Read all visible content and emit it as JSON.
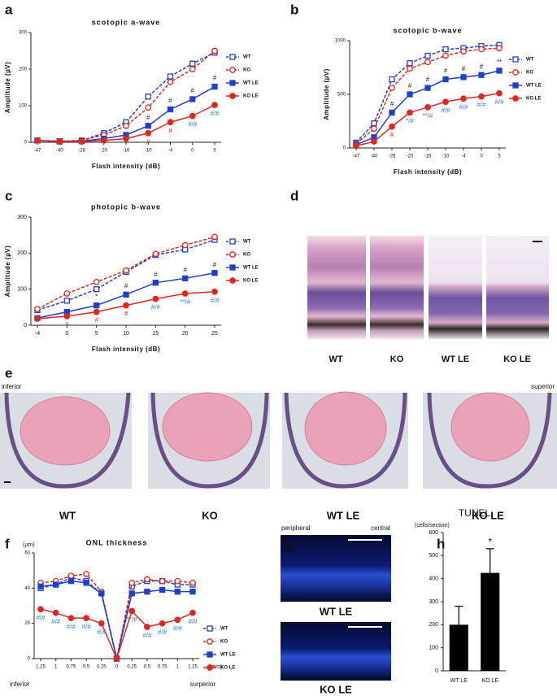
{
  "panel_labels": [
    "a",
    "b",
    "c",
    "d",
    "e",
    "f",
    "g",
    "h"
  ],
  "histology_d": {
    "labels": [
      "WT",
      "KO",
      "WT LE",
      "KO LE"
    ]
  },
  "histology_e": {
    "labels": [
      "WT",
      "KO",
      "WT LE",
      "KO LE"
    ],
    "left": "inferior",
    "right": "superior"
  },
  "histology_g": {
    "left": "peripheral",
    "right": "central",
    "labels": [
      "WT LE",
      "KO LE"
    ]
  },
  "chart_data": [
    {
      "type": "line",
      "title": "scotopic a-wave",
      "x_label": "Flash intensity (dB)",
      "y_label": "Amplitude (µV)",
      "categories": [
        "-47",
        "-40",
        "-28",
        "-20",
        "-16",
        "-10",
        "-4",
        "0",
        "5"
      ],
      "ylim": [
        0,
        300
      ],
      "yticks": [
        0,
        100,
        200,
        300
      ],
      "legend": "right",
      "series": [
        {
          "name": "WT",
          "color": "#1f3fd0",
          "marker": "square",
          "filled": false,
          "dashed": true,
          "values": [
            5,
            3,
            5,
            25,
            55,
            125,
            180,
            215,
            245
          ]
        },
        {
          "name": "KO",
          "color": "#e2261b",
          "marker": "circle",
          "filled": false,
          "dashed": true,
          "values": [
            5,
            3,
            5,
            20,
            45,
            95,
            165,
            200,
            250
          ]
        },
        {
          "name": "WT LE",
          "color": "#1f3fd0",
          "marker": "square",
          "filled": true,
          "dashed": false,
          "values": [
            5,
            2,
            3,
            10,
            20,
            45,
            90,
            118,
            152
          ]
        },
        {
          "name": "KO LE",
          "color": "#e2261b",
          "marker": "circle",
          "filled": true,
          "dashed": false,
          "values": [
            5,
            2,
            2,
            5,
            10,
            25,
            55,
            72,
            102
          ]
        }
      ],
      "annotations": [
        {
          "series": 2,
          "point": 5,
          "text": "#",
          "color": "#222",
          "side": "above"
        },
        {
          "series": 2,
          "point": 6,
          "text": "#",
          "color": "#222",
          "side": "above"
        },
        {
          "series": 2,
          "point": 7,
          "text": "#",
          "color": "#222",
          "side": "above"
        },
        {
          "series": 2,
          "point": 8,
          "text": "#",
          "color": "#222",
          "side": "above"
        },
        {
          "series": 3,
          "point": 5,
          "text": "#",
          "color": "#e2261b",
          "side": "below"
        },
        {
          "series": 3,
          "point": 6,
          "text": "#",
          "color": "#e2261b",
          "side": "below"
        },
        {
          "series": 3,
          "point": 7,
          "text": "#/#",
          "color": "#3a7bbf",
          "side": "below"
        },
        {
          "series": 3,
          "point": 8,
          "text": "#/#",
          "color": "#3a7bbf",
          "side": "below"
        }
      ]
    },
    {
      "type": "line",
      "title": "scotopic b-wave",
      "x_label": "Flash intensity (dB)",
      "y_label": "Amplitude (µV)",
      "categories": [
        "-47",
        "-40",
        "-28",
        "-20",
        "-16",
        "-10",
        "-4",
        "0",
        "5"
      ],
      "ylim": [
        0,
        1000
      ],
      "yticks": [
        0,
        500,
        1000
      ],
      "legend": "right",
      "series": [
        {
          "name": "WT",
          "color": "#1f3fd0",
          "marker": "square",
          "filled": false,
          "dashed": true,
          "values": [
            50,
            230,
            640,
            790,
            860,
            920,
            930,
            950,
            960
          ]
        },
        {
          "name": "KO",
          "color": "#e2261b",
          "marker": "circle",
          "filled": false,
          "dashed": true,
          "values": [
            40,
            180,
            560,
            740,
            800,
            860,
            900,
            920,
            930
          ]
        },
        {
          "name": "WT LE",
          "color": "#1f3fd0",
          "marker": "square",
          "filled": true,
          "dashed": false,
          "values": [
            30,
            100,
            330,
            500,
            560,
            640,
            660,
            680,
            720
          ]
        },
        {
          "name": "KO LE",
          "color": "#e2261b",
          "marker": "circle",
          "filled": true,
          "dashed": false,
          "values": [
            20,
            60,
            200,
            330,
            380,
            430,
            460,
            480,
            510
          ]
        }
      ],
      "annotations": [
        {
          "series": 2,
          "point": 2,
          "text": "#",
          "color": "#222",
          "side": "above"
        },
        {
          "series": 2,
          "point": 3,
          "text": "#",
          "color": "#222",
          "side": "above"
        },
        {
          "series": 2,
          "point": 4,
          "text": "#",
          "color": "#222",
          "side": "above"
        },
        {
          "series": 2,
          "point": 5,
          "text": "#",
          "color": "#222",
          "side": "above"
        },
        {
          "series": 2,
          "point": 6,
          "text": "#",
          "color": "#222",
          "side": "above"
        },
        {
          "series": 2,
          "point": 7,
          "text": "#",
          "color": "#222",
          "side": "above"
        },
        {
          "series": 2,
          "point": 8,
          "text": "**",
          "color": "#222",
          "side": "above"
        },
        {
          "series": 3,
          "point": 2,
          "text": "#",
          "color": "#e2261b",
          "side": "below"
        },
        {
          "series": 3,
          "point": 3,
          "text": "*/#",
          "color": "#3a7bbf",
          "side": "below"
        },
        {
          "series": 3,
          "point": 4,
          "text": "**/#",
          "color": "#3a7bbf",
          "side": "below"
        },
        {
          "series": 3,
          "point": 5,
          "text": "#/#",
          "color": "#3a7bbf",
          "side": "below"
        },
        {
          "series": 3,
          "point": 6,
          "text": "#/#",
          "color": "#3a7bbf",
          "side": "below"
        },
        {
          "series": 3,
          "point": 7,
          "text": "#/#",
          "color": "#3a7bbf",
          "side": "below"
        },
        {
          "series": 3,
          "point": 8,
          "text": "#/#",
          "color": "#3a7bbf",
          "side": "below"
        }
      ]
    },
    {
      "type": "line",
      "title": "photopic b-wave",
      "x_label": "Flash intensity (dB)",
      "y_label": "Amplitude (µV)",
      "categories": [
        "-4",
        "0",
        "5",
        "10",
        "15",
        "20",
        "25"
      ],
      "ylim": [
        0,
        300
      ],
      "yticks": [
        0,
        100,
        200,
        300
      ],
      "legend": "right",
      "series": [
        {
          "name": "WT",
          "color": "#1f3fd0",
          "marker": "square",
          "filled": false,
          "dashed": true,
          "values": [
            42,
            68,
            100,
            148,
            195,
            210,
            237
          ]
        },
        {
          "name": "KO",
          "color": "#e2261b",
          "marker": "circle",
          "filled": false,
          "dashed": true,
          "values": [
            45,
            88,
            120,
            152,
            198,
            222,
            245
          ]
        },
        {
          "name": "WT LE",
          "color": "#1f3fd0",
          "marker": "square",
          "filled": true,
          "dashed": false,
          "values": [
            20,
            37,
            55,
            85,
            118,
            130,
            145
          ]
        },
        {
          "name": "KO LE",
          "color": "#e2261b",
          "marker": "circle",
          "filled": true,
          "dashed": false,
          "values": [
            18,
            25,
            37,
            55,
            73,
            88,
            93
          ]
        }
      ],
      "annotations": [
        {
          "series": 2,
          "point": 2,
          "text": "*",
          "color": "#222",
          "side": "above"
        },
        {
          "series": 2,
          "point": 3,
          "text": "#",
          "color": "#222",
          "side": "above"
        },
        {
          "series": 2,
          "point": 4,
          "text": "#",
          "color": "#222",
          "side": "above"
        },
        {
          "series": 2,
          "point": 5,
          "text": "#",
          "color": "#222",
          "side": "above"
        },
        {
          "series": 2,
          "point": 6,
          "text": "#",
          "color": "#222",
          "side": "above"
        },
        {
          "series": 3,
          "point": 1,
          "text": "#",
          "color": "#e2261b",
          "side": "below"
        },
        {
          "series": 3,
          "point": 2,
          "text": "#",
          "color": "#e2261b",
          "side": "below"
        },
        {
          "series": 3,
          "point": 3,
          "text": "#",
          "color": "#e2261b",
          "side": "below"
        },
        {
          "series": 3,
          "point": 4,
          "text": "#/#",
          "color": "#3a7bbf",
          "side": "below"
        },
        {
          "series": 3,
          "point": 5,
          "text": "**/#",
          "color": "#3a7bbf",
          "side": "below"
        },
        {
          "series": 3,
          "point": 6,
          "text": "#/#",
          "color": "#3a7bbf",
          "side": "below"
        }
      ]
    },
    {
      "type": "line",
      "title": "ONL thickness",
      "y_unit": "(µm)",
      "x_unit": "(mm)",
      "x_end_labels": [
        "inferior",
        "surperior"
      ],
      "categories": [
        "1.25",
        "1",
        "0.75",
        "0.5",
        "0.25",
        "0",
        "0.25",
        "0.5",
        "0.75",
        "1",
        "1.25"
      ],
      "ylim": [
        0,
        60
      ],
      "yticks": [
        0,
        20,
        40,
        60
      ],
      "legend": "lower right",
      "series": [
        {
          "name": "WT",
          "color": "#1f3fd0",
          "marker": "square",
          "filled": false,
          "dashed": true,
          "values": [
            40,
            42,
            46,
            44,
            37,
            0,
            41,
            44,
            44,
            42,
            42
          ]
        },
        {
          "name": "KO",
          "color": "#e2261b",
          "marker": "circle",
          "filled": false,
          "dashed": true,
          "values": [
            43,
            44,
            47,
            48,
            38,
            0,
            43,
            45,
            44,
            44,
            43
          ]
        },
        {
          "name": "WT LE",
          "color": "#1f3fd0",
          "marker": "square",
          "filled": true,
          "dashed": false,
          "values": [
            41,
            42,
            44,
            43,
            37,
            0,
            37,
            38,
            39,
            38,
            38
          ]
        },
        {
          "name": "KO LE",
          "color": "#e2261b",
          "marker": "circle",
          "filled": true,
          "dashed": false,
          "values": [
            28,
            26,
            23,
            23,
            20,
            0,
            27,
            18,
            20,
            22,
            26
          ]
        }
      ],
      "annotations": [
        {
          "series": 3,
          "point": 0,
          "text": "#/#",
          "color": "#3a7bbf",
          "side": "below"
        },
        {
          "series": 3,
          "point": 1,
          "text": "#/#",
          "color": "#3a7bbf",
          "side": "below"
        },
        {
          "series": 3,
          "point": 2,
          "text": "#/#",
          "color": "#3a7bbf",
          "side": "below"
        },
        {
          "series": 3,
          "point": 3,
          "text": "#/#",
          "color": "#3a7bbf",
          "side": "below"
        },
        {
          "series": 3,
          "point": 4,
          "text": "#/#",
          "color": "#3a7bbf",
          "side": "below"
        },
        {
          "series": 3,
          "point": 6,
          "text": "**/#",
          "color": "#3a7bbf",
          "side": "below"
        },
        {
          "series": 3,
          "point": 7,
          "text": "#/#",
          "color": "#3a7bbf",
          "side": "below"
        },
        {
          "series": 3,
          "point": 8,
          "text": "#/#",
          "color": "#3a7bbf",
          "side": "below"
        },
        {
          "series": 3,
          "point": 9,
          "text": "#/#",
          "color": "#3a7bbf",
          "side": "below"
        },
        {
          "series": 3,
          "point": 10,
          "text": "#/#",
          "color": "#3a7bbf",
          "side": "below"
        }
      ]
    },
    {
      "type": "bar",
      "title": "TUNEL",
      "y_unit": "(cells/section)",
      "color": "#000000",
      "categories": [
        "WT LE",
        "KO LE"
      ],
      "values": [
        200,
        425
      ],
      "errors": [
        80,
        105
      ],
      "ylim": [
        0,
        600
      ],
      "yticks": [
        0,
        100,
        200,
        300,
        400,
        500,
        600
      ],
      "annotations": [
        {
          "point": 1,
          "text": "*",
          "color": "#222",
          "side": "above"
        }
      ]
    }
  ]
}
